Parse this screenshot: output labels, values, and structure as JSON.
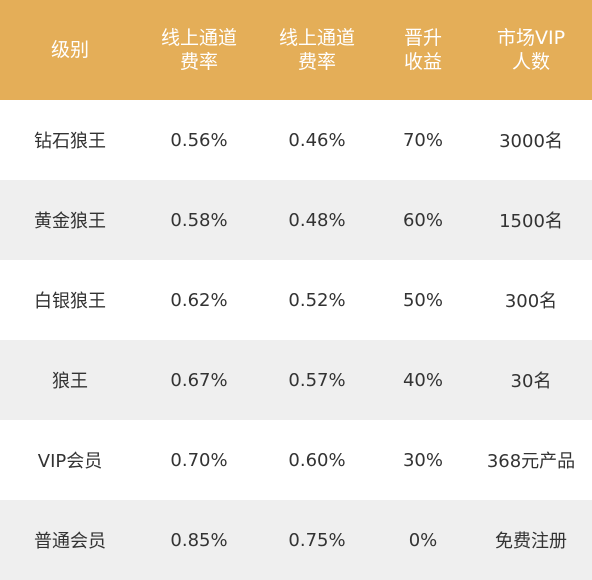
{
  "table": {
    "header": {
      "level": "级别",
      "rate1": "线上通道\n费率",
      "rate2": "线上通道\n费率",
      "promotion": "晋升\n收益",
      "vip_count": "市场VIP\n人数"
    },
    "rows": [
      {
        "level": "钻石狼王",
        "rate1": "0.56%",
        "rate2": "0.46%",
        "promotion": "70%",
        "vip_count": "3000名"
      },
      {
        "level": "黄金狼王",
        "rate1": "0.58%",
        "rate2": "0.48%",
        "promotion": "60%",
        "vip_count": "1500名"
      },
      {
        "level": "白银狼王",
        "rate1": "0.62%",
        "rate2": "0.52%",
        "promotion": "50%",
        "vip_count": "300名"
      },
      {
        "level": "狼王",
        "rate1": "0.67%",
        "rate2": "0.57%",
        "promotion": "40%",
        "vip_count": "30名"
      },
      {
        "level": "VIP会员",
        "rate1": "0.70%",
        "rate2": "0.60%",
        "promotion": "30%",
        "vip_count": "368元产品"
      },
      {
        "level": "普通会员",
        "rate1": "0.85%",
        "rate2": "0.75%",
        "promotion": "0%",
        "vip_count": "免费注册"
      }
    ]
  },
  "colors": {
    "header_bg": "#e4ae58",
    "header_text": "#ffffff",
    "row_alt_bg": "#efefef",
    "row_text": "#333333"
  }
}
